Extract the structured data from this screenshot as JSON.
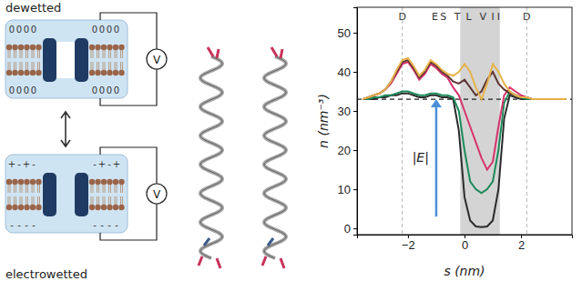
{
  "diagram": {
    "labels": {
      "top": "dewetted",
      "bottom": "electrowetted"
    },
    "panels": [
      {
        "meter": "V",
        "top_charges": [
          "0",
          "0",
          "0",
          "0",
          "0",
          "0",
          "0",
          "0"
        ],
        "bottom_charges": [
          "0",
          "0",
          "0",
          "0",
          "0",
          "0",
          "0",
          "0"
        ]
      },
      {
        "meter": "V",
        "top_charges": [
          "+",
          "-",
          "+",
          "-",
          "-",
          "+",
          "-",
          "+"
        ],
        "bottom_charges": [
          "-",
          "-",
          "-",
          "-",
          "-",
          "-",
          "-",
          "-"
        ]
      }
    ]
  },
  "chart_data": {
    "type": "line",
    "x_label": "s (nm)",
    "y_label": "n (nm⁻³)",
    "xlim": [
      -3.8,
      3.8
    ],
    "ylim": [
      -1.6,
      56.5
    ],
    "xticks": [
      {
        "value": -2,
        "label": "−2"
      },
      0,
      2
    ],
    "yticks": [
      0,
      10,
      20,
      30,
      40,
      50
    ],
    "x": [
      -3.6,
      -3.4,
      -3.2,
      -3.0,
      -2.8,
      -2.6,
      -2.4,
      -2.2,
      -2.0,
      -1.8,
      -1.6,
      -1.4,
      -1.2,
      -1.0,
      -0.8,
      -0.6,
      -0.4,
      -0.2,
      0.0,
      0.2,
      0.4,
      0.6,
      0.8,
      1.0,
      1.2,
      1.4,
      1.6,
      1.8,
      2.0,
      2.2,
      2.4,
      2.6,
      2.8,
      3.0,
      3.2,
      3.4,
      3.6
    ],
    "series": [
      {
        "color": "#e6b34a",
        "values": [
          33,
          33.5,
          34,
          34.5,
          35.5,
          37.5,
          40.5,
          43,
          43.5,
          41.5,
          39,
          40.5,
          43,
          42,
          40.5,
          39.5,
          39,
          40,
          42,
          40,
          36,
          33,
          37,
          42,
          40,
          37,
          35,
          34,
          33.5,
          33.5,
          33,
          33,
          33,
          33,
          33,
          33,
          33
        ]
      },
      {
        "color": "#5e3434",
        "values": [
          33,
          33.5,
          34,
          34.5,
          35.5,
          37.5,
          40,
          42.5,
          43,
          41,
          38.5,
          40,
          42.5,
          41.5,
          40,
          39,
          37.5,
          37,
          38,
          36,
          34,
          35,
          38,
          40,
          37,
          35.5,
          34.5,
          34,
          33.5,
          33.5,
          33,
          33,
          33,
          33,
          33,
          33,
          33
        ]
      },
      {
        "color": "#d6336c",
        "values": [
          33,
          33.5,
          34,
          34.5,
          35.5,
          37,
          39.5,
          42,
          42.5,
          40.5,
          38,
          39.5,
          42,
          41,
          39.5,
          38.5,
          36,
          34,
          30,
          26,
          22,
          18,
          15,
          17,
          26,
          34,
          36,
          35,
          34,
          33.5,
          33,
          33,
          33,
          33,
          33,
          33,
          33
        ]
      },
      {
        "color": "#1b8a5a",
        "values": [
          33,
          33,
          33.5,
          33.5,
          34,
          34,
          34.5,
          35,
          35,
          34.5,
          34,
          34,
          34.5,
          34.5,
          34,
          34,
          33.5,
          30,
          20,
          12,
          10,
          9,
          10,
          12,
          20,
          32,
          35,
          34,
          33.5,
          33,
          33,
          33,
          33,
          33,
          33,
          33,
          33
        ]
      },
      {
        "color": "#2b2b2b",
        "values": [
          33,
          33,
          33,
          33.5,
          33.5,
          34,
          34,
          34.5,
          34.5,
          34,
          33.5,
          33.5,
          34,
          34,
          33.5,
          33.5,
          33,
          25,
          8,
          2,
          0.5,
          0.3,
          0.5,
          2,
          10,
          28,
          34,
          33.5,
          33,
          33,
          33,
          33,
          33,
          33,
          33,
          33,
          33
        ]
      }
    ],
    "hline": 33,
    "vlines": [
      -2.2,
      2.2
    ],
    "shaded": [
      -0.15,
      1.25
    ],
    "annotations": [
      {
        "text": "D",
        "x": -2.2
      },
      {
        "text": "E",
        "x": -1.05
      },
      {
        "text": "S",
        "x": -0.75
      },
      {
        "text": "T",
        "x": -0.25
      },
      {
        "text": "L",
        "x": 0.15
      },
      {
        "text": "V",
        "x": 0.65
      },
      {
        "text": "I",
        "x": 1.0
      },
      {
        "text": "I",
        "x": 1.2
      },
      {
        "text": "D",
        "x": 2.2
      }
    ],
    "arrow": {
      "text": "|E|",
      "x": -1.0,
      "y_start": 3,
      "y_end": 33,
      "label_y": 17
    }
  }
}
